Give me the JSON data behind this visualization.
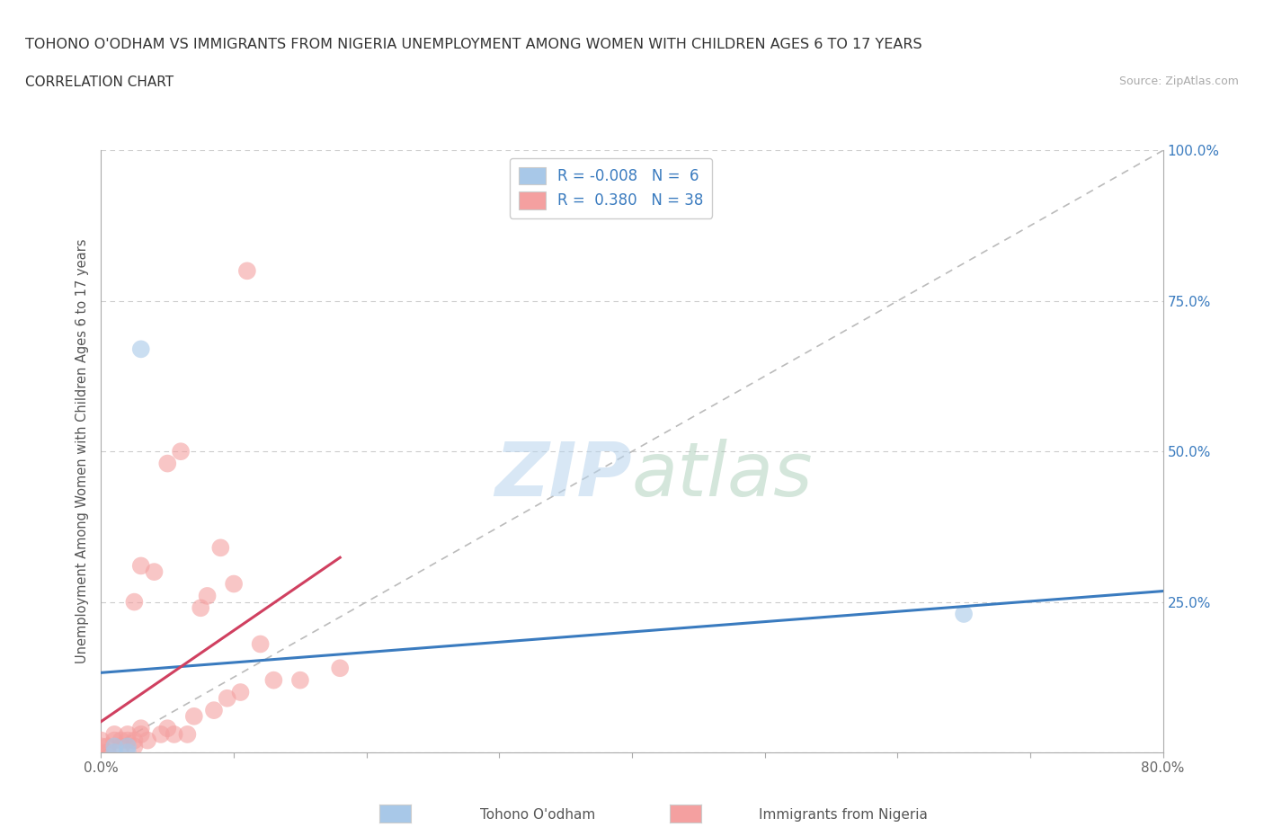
{
  "title": "TOHONO O'ODHAM VS IMMIGRANTS FROM NIGERIA UNEMPLOYMENT AMONG WOMEN WITH CHILDREN AGES 6 TO 17 YEARS",
  "subtitle": "CORRELATION CHART",
  "source": "Source: ZipAtlas.com",
  "ylabel": "Unemployment Among Women with Children Ages 6 to 17 years",
  "xlim": [
    0.0,
    0.8
  ],
  "ylim": [
    0.0,
    1.0
  ],
  "xticks": [
    0.0,
    0.1,
    0.2,
    0.3,
    0.4,
    0.5,
    0.6,
    0.7,
    0.8
  ],
  "xticklabels": [
    "0.0%",
    "",
    "",
    "",
    "",
    "",
    "",
    "",
    "80.0%"
  ],
  "yticks": [
    0.0,
    0.25,
    0.5,
    0.75,
    1.0
  ],
  "yticklabels_left": [
    "",
    "25.0%",
    "50.0%",
    "75.0%",
    "100.0%"
  ],
  "yticklabels_right": [
    "",
    "25.0%",
    "50.0%",
    "75.0%",
    "100.0%"
  ],
  "legend_r1": "R = -0.008",
  "legend_n1": "N =  6",
  "legend_r2": "R =  0.380",
  "legend_n2": "N = 38",
  "color_blue": "#a8c8e8",
  "color_blue_fill": "#a8c8e8",
  "color_blue_line": "#3a7bbf",
  "color_pink": "#f4a0a0",
  "color_pink_line": "#d04060",
  "color_ref_line": "#bbbbbb",
  "background_color": "#ffffff",
  "watermark_zip": "ZIP",
  "watermark_atlas": "atlas",
  "tohono_x": [
    0.01,
    0.01,
    0.02,
    0.02,
    0.03,
    0.65
  ],
  "tohono_y": [
    0.0,
    0.01,
    0.0,
    0.01,
    0.67,
    0.23
  ],
  "nigeria_x": [
    0.0,
    0.0,
    0.0,
    0.005,
    0.005,
    0.01,
    0.01,
    0.015,
    0.015,
    0.02,
    0.02,
    0.025,
    0.025,
    0.025,
    0.03,
    0.03,
    0.03,
    0.035,
    0.04,
    0.045,
    0.05,
    0.05,
    0.055,
    0.06,
    0.065,
    0.07,
    0.075,
    0.08,
    0.085,
    0.09,
    0.095,
    0.1,
    0.105,
    0.11,
    0.12,
    0.13,
    0.15,
    0.18
  ],
  "nigeria_y": [
    0.0,
    0.01,
    0.02,
    0.0,
    0.01,
    0.02,
    0.03,
    0.01,
    0.02,
    0.02,
    0.03,
    0.01,
    0.02,
    0.25,
    0.03,
    0.31,
    0.04,
    0.02,
    0.3,
    0.03,
    0.04,
    0.48,
    0.03,
    0.5,
    0.03,
    0.06,
    0.24,
    0.26,
    0.07,
    0.34,
    0.09,
    0.28,
    0.1,
    0.8,
    0.18,
    0.12,
    0.12,
    0.14
  ],
  "legend_patch_blue": "#a8c8e8",
  "legend_patch_pink": "#f4a0a0"
}
